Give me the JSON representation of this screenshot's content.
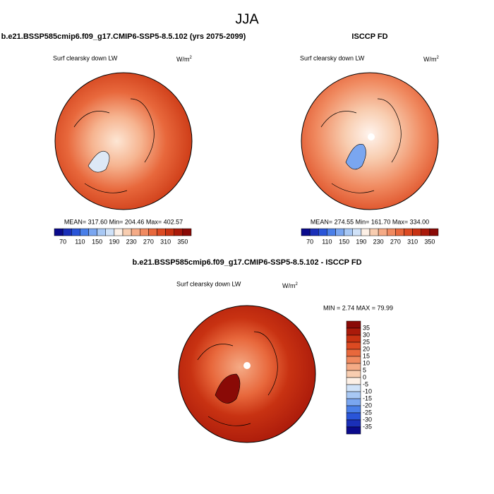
{
  "header": {
    "title": "JJA"
  },
  "panels": [
    {
      "title": "b.e21.BSSP585cmip6.f09_g17.CMIP6-SSP5-8.5.102 (yrs 2075-2099)",
      "subtitle": "Surf clearsky down LW",
      "unit": "W/m",
      "unit_exp": "2",
      "stats": "MEAN= 317.60  Min= 204.46  Max= 402.57",
      "colorbar": [
        70,
        110,
        150,
        190,
        230,
        270,
        310,
        350
      ]
    },
    {
      "title": "ISCCP FD",
      "subtitle": "Surf clearsky down LW",
      "unit": "W/m",
      "unit_exp": "2",
      "stats": "MEAN= 274.55  Min= 161.70  Max= 334.00",
      "colorbar": [
        70,
        110,
        150,
        190,
        230,
        270,
        310,
        350
      ]
    },
    {
      "title": "b.e21.BSSP585cmip6.f09_g17.CMIP6-SSP5-8.5.102 - ISCCP FD",
      "subtitle": "Surf clearsky down LW",
      "unit": "W/m",
      "unit_exp": "2",
      "stats": "MIN =  2.74 MAX =  79.99",
      "colorbar": [
        35,
        30,
        25,
        20,
        15,
        10,
        5,
        0,
        -5,
        -10,
        -15,
        -20,
        -25,
        -30,
        -35
      ]
    }
  ]
}
